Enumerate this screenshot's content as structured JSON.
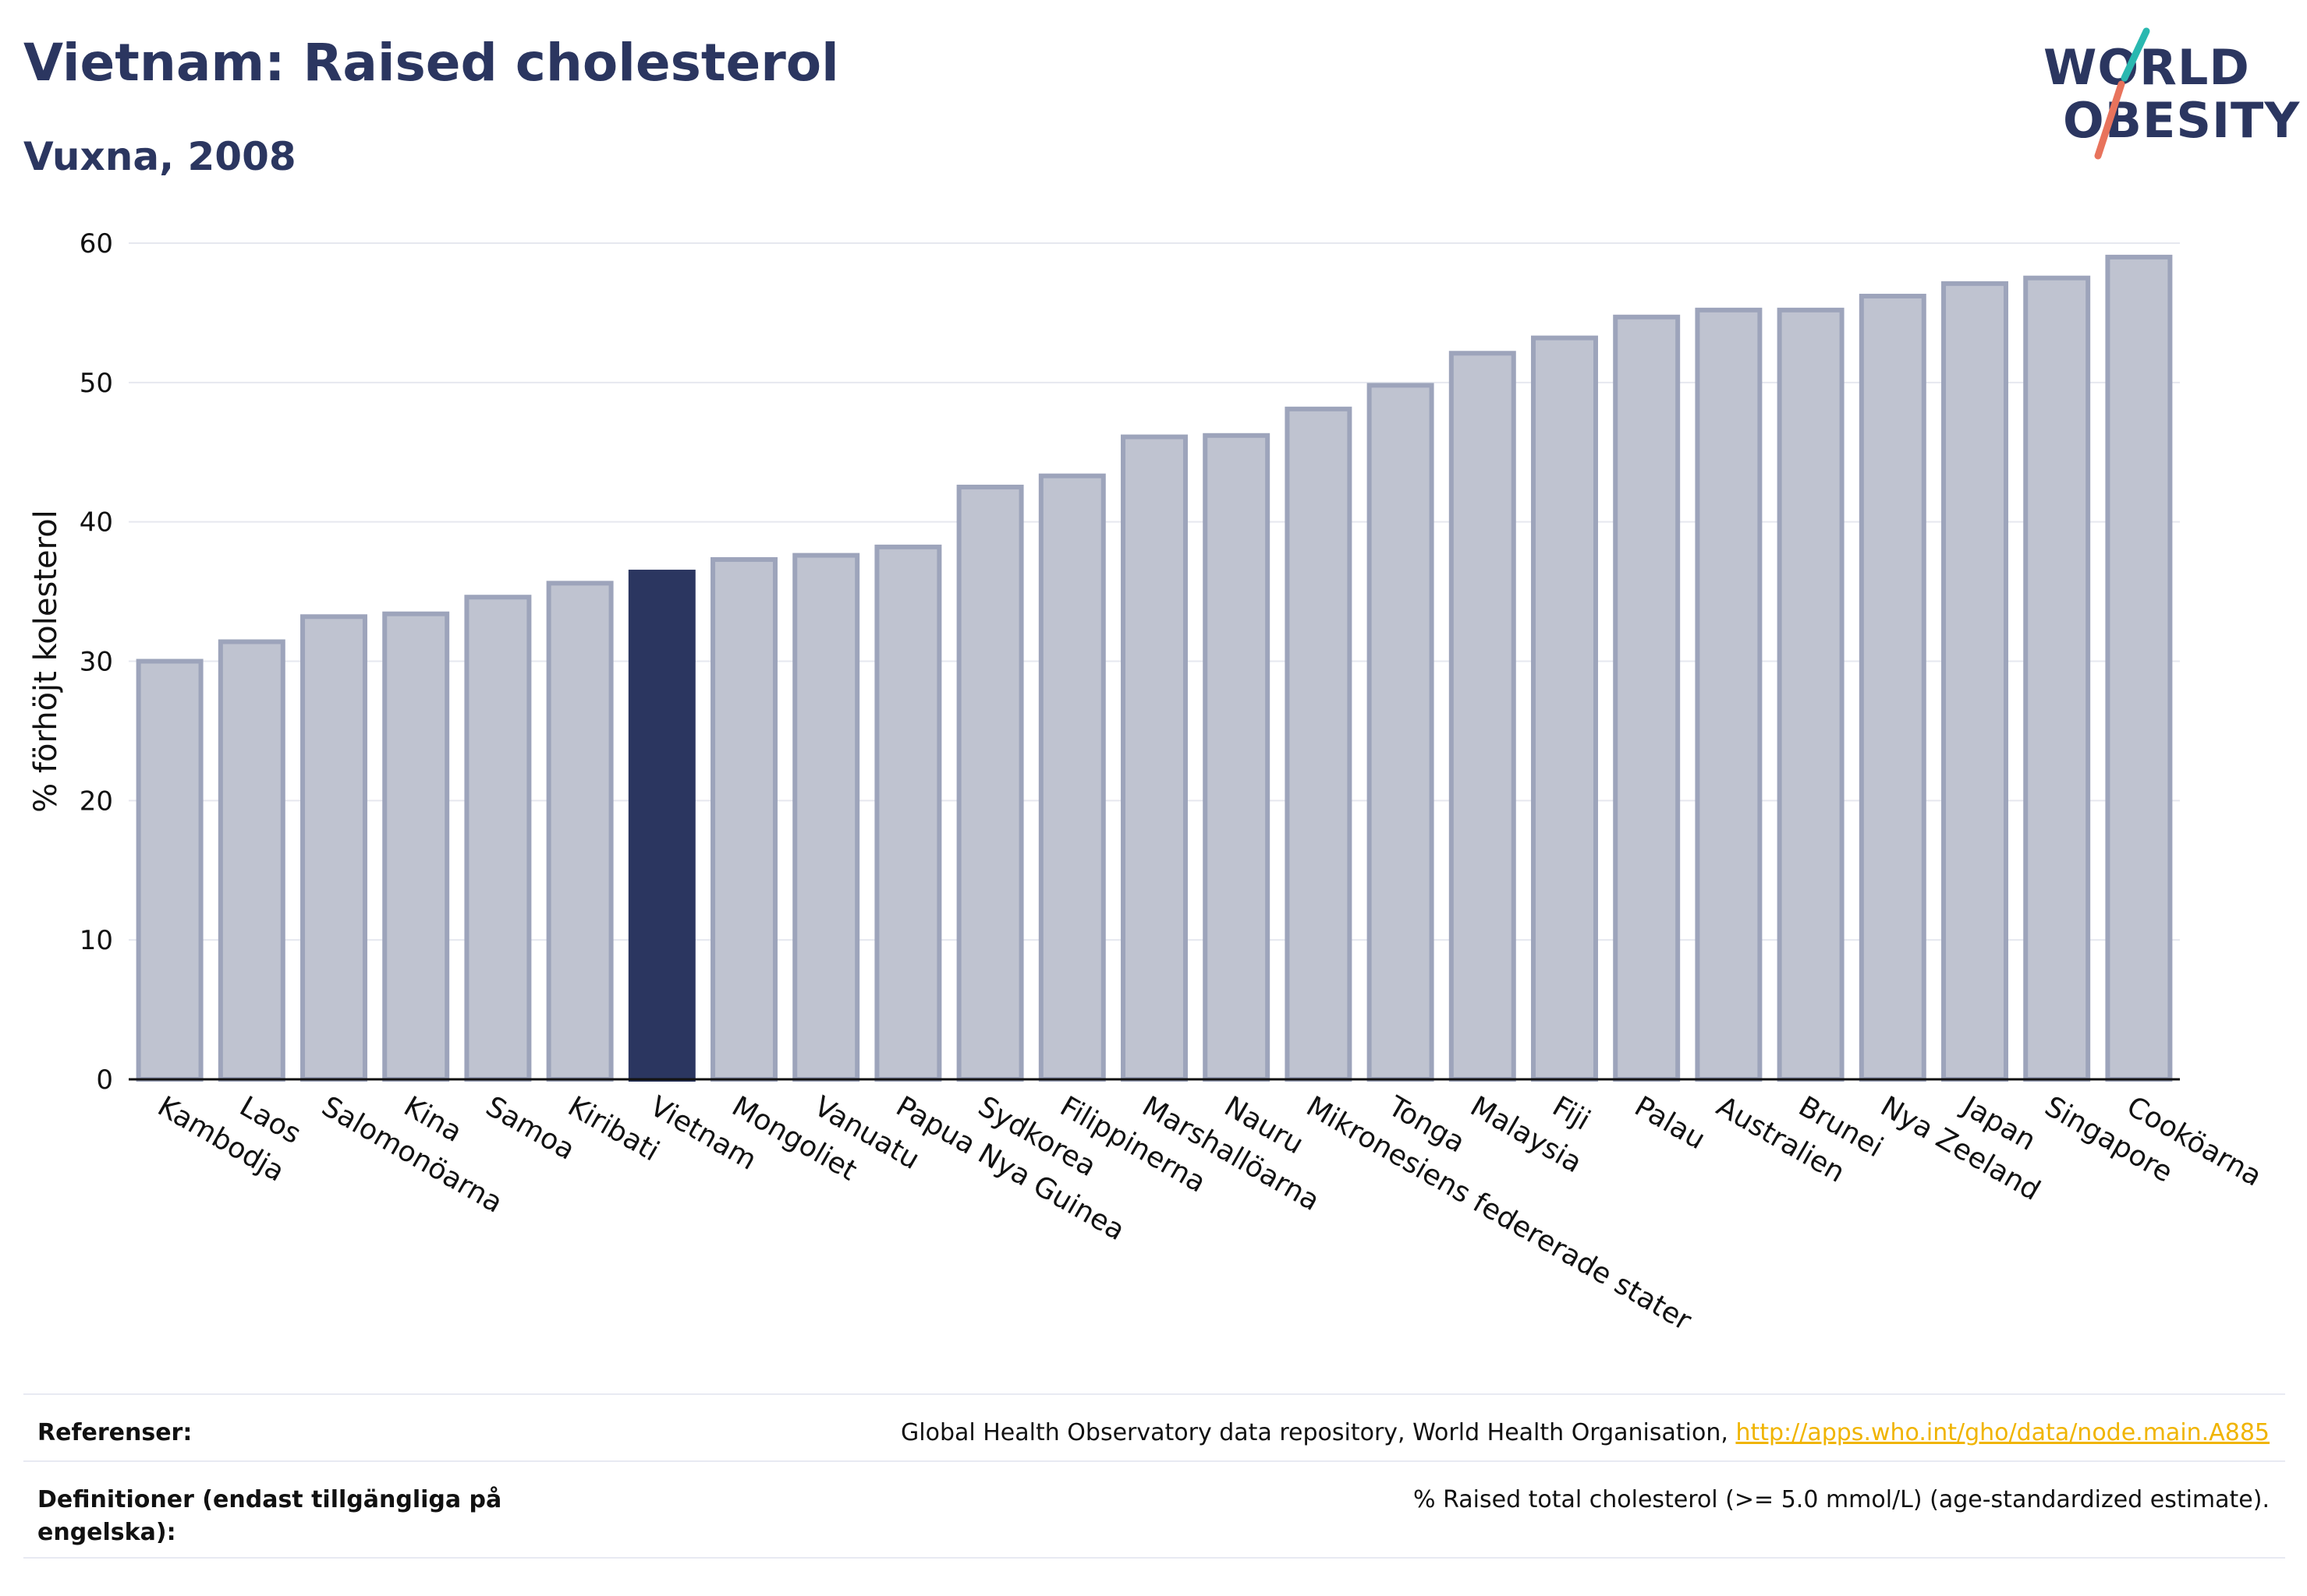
{
  "header": {
    "title": "Vietnam: Raised cholesterol",
    "subtitle": "Vuxna, 2008"
  },
  "logo": {
    "line1": "WORLD",
    "line2": "OBESITY"
  },
  "colors": {
    "highlight": "#2b3660",
    "bar_fill": "#bfc3d0",
    "bar_stroke": "#9da4bb",
    "grid": "#e6e8ef",
    "logo_teal": "#2ab8b0",
    "logo_coral": "#e8735c"
  },
  "chart_data": {
    "type": "bar",
    "ylabel": "% förhöjt kolesterol",
    "ylim": [
      0,
      60
    ],
    "yticks": [
      0,
      10,
      20,
      30,
      40,
      50,
      60
    ],
    "grid": true,
    "highlight": "Vietnam",
    "categories": [
      "Kambodja",
      "Laos",
      "Salomonöarna",
      "Kina",
      "Samoa",
      "Kiribati",
      "Vietnam",
      "Mongoliet",
      "Vanuatu",
      "Papua Nya Guinea",
      "Sydkorea",
      "Filippinerna",
      "Marshallöarna",
      "Nauru",
      "Mikronesiens federerade stater",
      "Tonga",
      "Malaysia",
      "Fiji",
      "Palau",
      "Australien",
      "Brunei",
      "Nya Zeeland",
      "Japan",
      "Singapore",
      "Cooköarna"
    ],
    "values": [
      30.0,
      31.4,
      33.2,
      33.4,
      34.6,
      35.6,
      36.4,
      37.3,
      37.6,
      38.2,
      42.5,
      43.3,
      46.1,
      46.2,
      48.1,
      49.8,
      52.1,
      53.2,
      54.7,
      55.2,
      55.2,
      56.2,
      57.1,
      57.5,
      59.0
    ]
  },
  "footer": {
    "ref_label": "Referenser:",
    "ref_text": "Global Health Observatory data repository, World Health Organisation, ",
    "ref_link": "http://apps.who.int/gho/data/node.main.A885",
    "def_label": "Definitioner (endast tillgängliga på engelska):",
    "def_text": "% Raised total cholesterol (>= 5.0 mmol/L) (age-standardized estimate)."
  }
}
